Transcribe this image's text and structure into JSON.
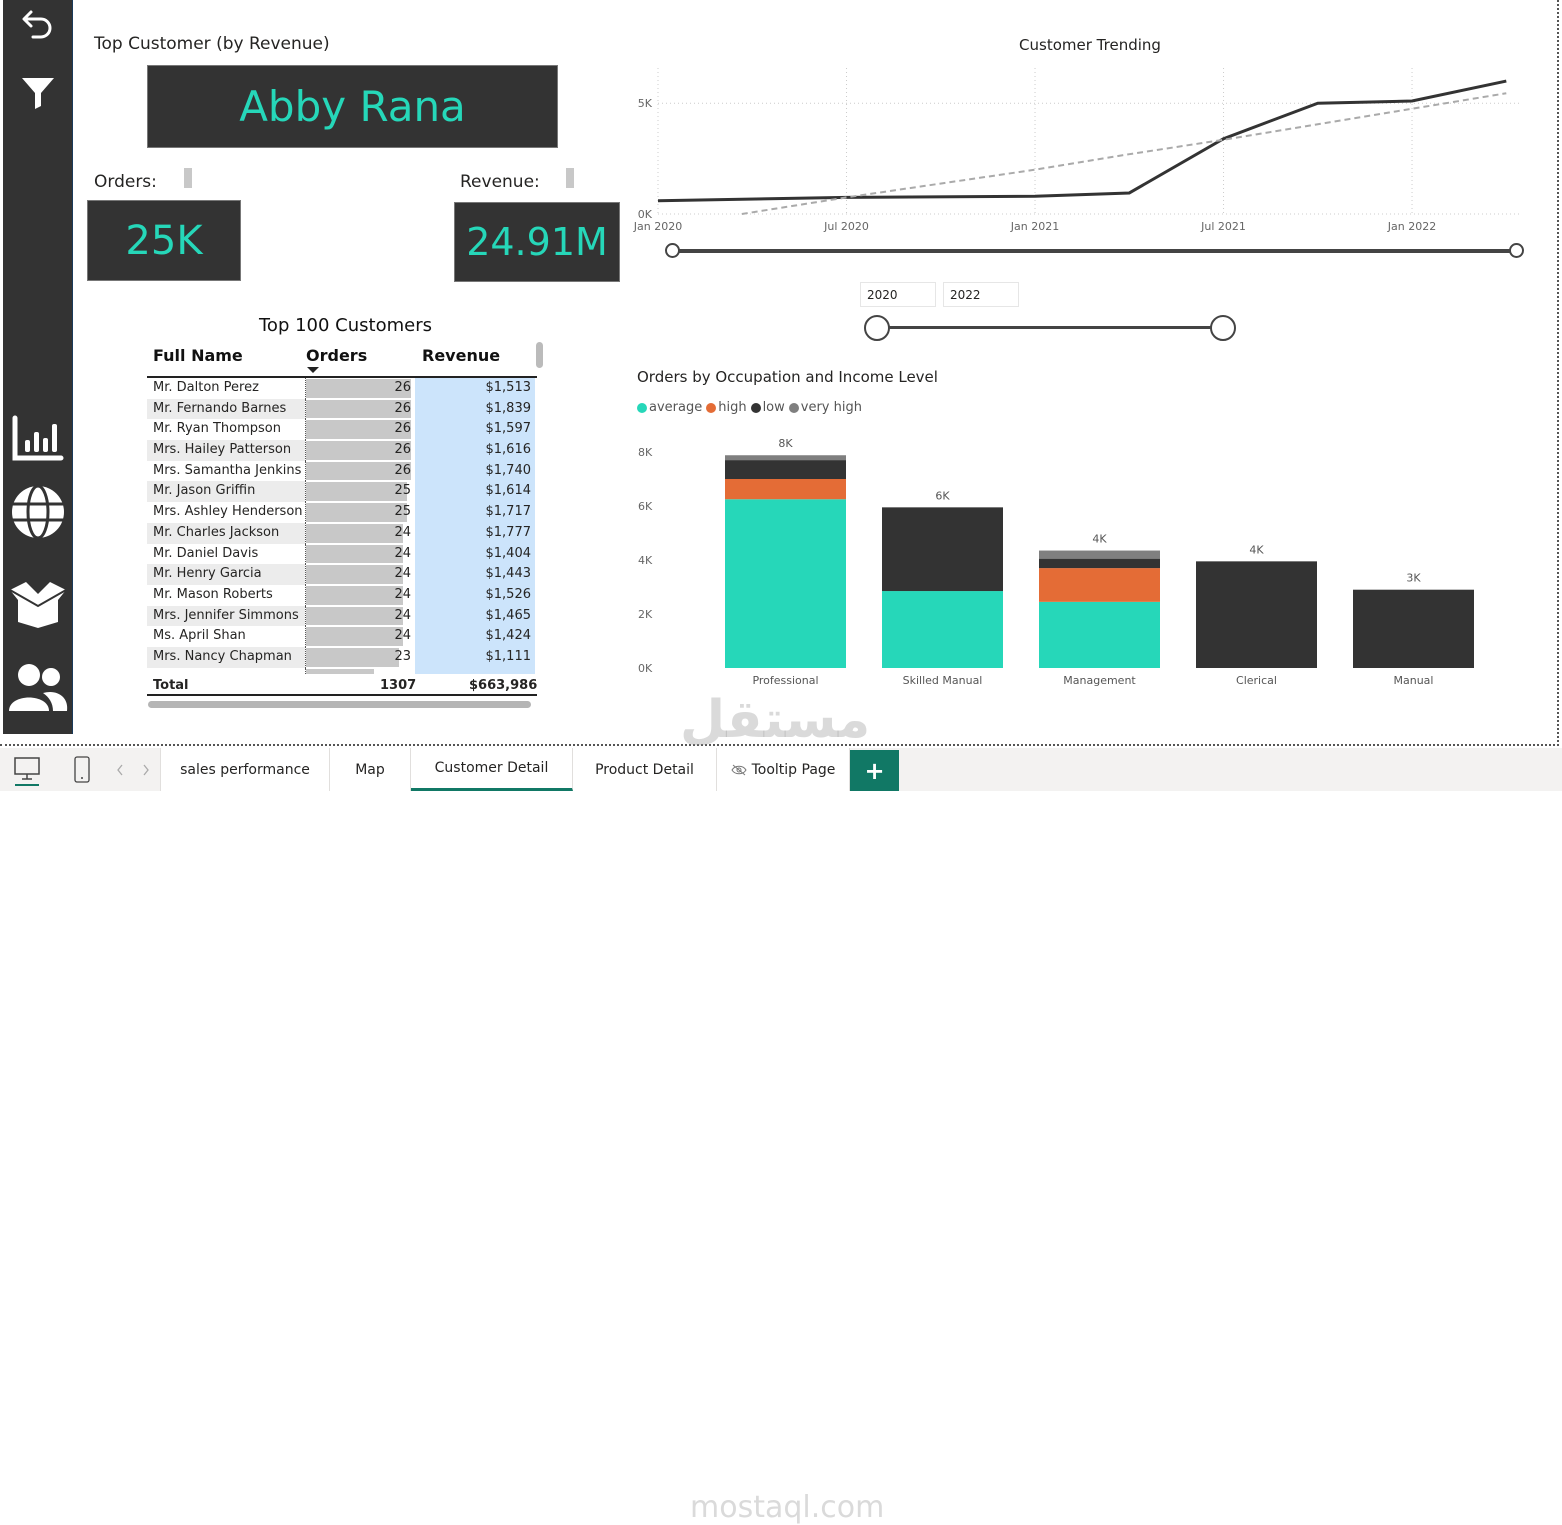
{
  "sidebar": {
    "items": [
      {
        "icon": "back-arrow-icon",
        "label": "Back"
      },
      {
        "icon": "filter-icon",
        "label": "Filter"
      },
      {
        "icon": "bar-chart-icon",
        "label": "Sales performance"
      },
      {
        "icon": "globe-icon",
        "label": "Map"
      },
      {
        "icon": "box-icon",
        "label": "Product detail"
      },
      {
        "icon": "users-icon",
        "label": "Customer detail"
      }
    ]
  },
  "top_customer": {
    "label": "Top Customer (by Revenue)",
    "name": "Abby Rana",
    "orders_label": "Orders:",
    "orders_value": "25K",
    "revenue_label": "Revenue:",
    "revenue_value": "24.91M"
  },
  "table": {
    "title": "Top 100 Customers",
    "columns": [
      "Full Name",
      "Orders",
      "Revenue"
    ],
    "sorted_column": "Orders",
    "rows": [
      {
        "name": "Mr. Dalton Perez",
        "orders": 26,
        "revenue": "$1,513"
      },
      {
        "name": "Mr. Fernando Barnes",
        "orders": 26,
        "revenue": "$1,839"
      },
      {
        "name": "Mr. Ryan Thompson",
        "orders": 26,
        "revenue": "$1,597"
      },
      {
        "name": "Mrs. Hailey Patterson",
        "orders": 26,
        "revenue": "$1,616"
      },
      {
        "name": "Mrs. Samantha Jenkins",
        "orders": 26,
        "revenue": "$1,740"
      },
      {
        "name": "Mr. Jason Griffin",
        "orders": 25,
        "revenue": "$1,614"
      },
      {
        "name": "Mrs. Ashley Henderson",
        "orders": 25,
        "revenue": "$1,717"
      },
      {
        "name": "Mr. Charles Jackson",
        "orders": 24,
        "revenue": "$1,777"
      },
      {
        "name": "Mr. Daniel Davis",
        "orders": 24,
        "revenue": "$1,404"
      },
      {
        "name": "Mr. Henry Garcia",
        "orders": 24,
        "revenue": "$1,443"
      },
      {
        "name": "Mr. Mason Roberts",
        "orders": 24,
        "revenue": "$1,526"
      },
      {
        "name": "Mrs. Jennifer Simmons",
        "orders": 24,
        "revenue": "$1,465"
      },
      {
        "name": "Ms. April Shan",
        "orders": 24,
        "revenue": "$1,424"
      },
      {
        "name": "Mrs. Nancy Chapman",
        "orders": 23,
        "revenue": "$1,111"
      }
    ],
    "total_label": "Total",
    "total_orders": "1307",
    "total_revenue": "$663,986"
  },
  "line_chart": {
    "title": "Customer Trending",
    "y_ticks": [
      "0K",
      "5K"
    ],
    "x_ticks": [
      "Jan 2020",
      "Jul 2020",
      "Jan 2021",
      "Jul 2021",
      "Jan 2022"
    ],
    "slider_start": "2020",
    "slider_end": "2022"
  },
  "bar_chart": {
    "title": "Orders by Occupation and Income Level",
    "legend": [
      {
        "label": "average",
        "color": "#26d7b9"
      },
      {
        "label": "high",
        "color": "#e46c36"
      },
      {
        "label": "low",
        "color": "#333333"
      },
      {
        "label": "very high",
        "color": "#7f7f7f"
      }
    ],
    "y_ticks": [
      "0K",
      "2K",
      "4K",
      "6K",
      "8K"
    ]
  },
  "chart_data": [
    {
      "type": "line",
      "title": "Customer Trending",
      "xlabel": "",
      "ylabel": "",
      "x": [
        "2020-01",
        "2020-07",
        "2021-01",
        "2021-04",
        "2021-07",
        "2021-10",
        "2022-01",
        "2022-04"
      ],
      "series": [
        {
          "name": "Customers",
          "style": "solid",
          "values": [
            600,
            750,
            800,
            950,
            3400,
            5000,
            5100,
            6000
          ]
        },
        {
          "name": "Trend",
          "style": "dashed",
          "values": [
            -600,
            750,
            2000,
            2700,
            3350,
            4050,
            4750,
            5450
          ]
        }
      ],
      "ylim": [
        0,
        6500
      ],
      "x_tick_labels": [
        "Jan 2020",
        "Jul 2020",
        "Jan 2021",
        "Jul 2021",
        "Jan 2022"
      ],
      "y_tick_labels": [
        "0K",
        "5K"
      ],
      "grid": true
    },
    {
      "type": "bar",
      "stacked": true,
      "title": "Orders by Occupation and Income Level",
      "categories": [
        "Professional",
        "Skilled Manual",
        "Management",
        "Clerical",
        "Manual"
      ],
      "series": [
        {
          "name": "average",
          "color": "#26d7b9",
          "values": [
            6250,
            2850,
            2450,
            0,
            0
          ]
        },
        {
          "name": "high",
          "color": "#e46c36",
          "values": [
            750,
            0,
            1250,
            0,
            0
          ]
        },
        {
          "name": "low",
          "color": "#333333",
          "values": [
            700,
            3100,
            350,
            3950,
            2900
          ]
        },
        {
          "name": "very high",
          "color": "#7f7f7f",
          "values": [
            180,
            0,
            300,
            0,
            0
          ]
        }
      ],
      "totals_labels": [
        "8K",
        "6K",
        "4K",
        "4K",
        "3K"
      ],
      "ylim": [
        0,
        8500
      ],
      "y_tick_labels": [
        "0K",
        "2K",
        "4K",
        "6K",
        "8K"
      ],
      "legend_position": "top-left",
      "grid": false
    }
  ],
  "tabs": {
    "items": [
      "sales performance",
      "Map",
      "Customer Detail",
      "Product Detail",
      "Tooltip Page"
    ],
    "active": "Customer Detail",
    "add_label": "+"
  },
  "watermark": {
    "arabic": "مستقل",
    "latin": "mostaql.com"
  }
}
